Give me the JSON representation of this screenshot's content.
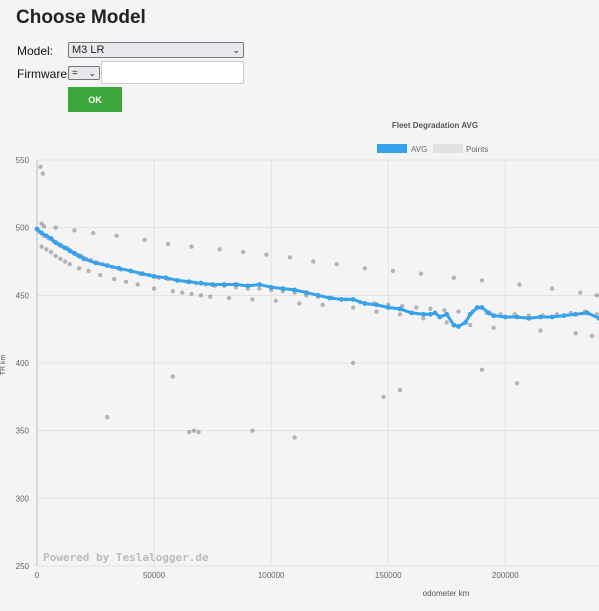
{
  "page": {
    "title": "Choose Model"
  },
  "form": {
    "model_label": "Model:",
    "model_value": "M3 LR",
    "firmware_label": "Firmware:",
    "firmware_operator": "=",
    "firmware_value": "",
    "ok_label": "OK"
  },
  "chart_data": {
    "type": "scatter",
    "title": "Fleet Degradation AVG",
    "xlabel": "odometer km",
    "ylabel": "TR km",
    "xlim": [
      0,
      240000
    ],
    "ylim": [
      250,
      550
    ],
    "x_ticks": [
      0,
      50000,
      100000,
      150000,
      200000
    ],
    "y_ticks": [
      250,
      300,
      350,
      400,
      450,
      500,
      550
    ],
    "grid": true,
    "legend_position": "top",
    "watermark": "Powered by Teslalogger.de",
    "series": [
      {
        "name": "AVG",
        "type": "line",
        "color": "#36a2eb",
        "x": [
          0,
          2000,
          4000,
          6000,
          8000,
          10000,
          12000,
          14000,
          16000,
          18000,
          20000,
          25000,
          30000,
          35000,
          40000,
          45000,
          50000,
          55000,
          60000,
          65000,
          70000,
          75000,
          80000,
          85000,
          90000,
          95000,
          100000,
          105000,
          110000,
          115000,
          120000,
          125000,
          130000,
          135000,
          140000,
          145000,
          150000,
          155000,
          160000,
          165000,
          168000,
          170000,
          172000,
          175000,
          178000,
          180000,
          183000,
          185000,
          188000,
          190000,
          193000,
          195000,
          200000,
          205000,
          210000,
          215000,
          220000,
          225000,
          230000,
          235000,
          240000
        ],
        "y": [
          499,
          496,
          494,
          492,
          489,
          487,
          485,
          483,
          481,
          479,
          477,
          474,
          472,
          470,
          468,
          466,
          464,
          463,
          461,
          460,
          459,
          458,
          458,
          458,
          457,
          458,
          456,
          455,
          454,
          452,
          450,
          448,
          447,
          447,
          444,
          443,
          441,
          440,
          437,
          436,
          436,
          437,
          434,
          436,
          428,
          427,
          430,
          436,
          441,
          441,
          437,
          435,
          434,
          434,
          433,
          434,
          434,
          435,
          436,
          437,
          433
        ]
      },
      {
        "name": "Points",
        "type": "scatter",
        "color": "#999999",
        "x": [
          1000,
          3000,
          5000,
          7000,
          9000,
          11000,
          13000,
          15000,
          17000,
          19000,
          21000,
          23000,
          26000,
          28000,
          32000,
          36000,
          40000,
          44000,
          48000,
          52000,
          56000,
          60000,
          64000,
          68000,
          72000,
          76000,
          80000,
          85000,
          90000,
          95000,
          100000,
          105000,
          110000,
          115000,
          120000,
          126000,
          132000,
          138000,
          144000,
          150000,
          156000,
          162000,
          168000,
          174000,
          180000,
          186000,
          192000,
          198000,
          204000,
          210000,
          216000,
          222000,
          228000,
          234000,
          239000,
          2000,
          4000,
          6000,
          8000,
          10000,
          12000,
          14000,
          18000,
          22000,
          27000,
          33000,
          38000,
          43000,
          50000,
          58000,
          62000,
          66000,
          70000,
          74000,
          82000,
          92000,
          102000,
          112000,
          122000,
          135000,
          145000,
          155000,
          165000,
          175000,
          185000,
          195000,
          215000,
          230000,
          237000,
          2000,
          3000,
          8000,
          16000,
          24000,
          34000,
          46000,
          56000,
          66000,
          78000,
          88000,
          98000,
          108000,
          118000,
          128000,
          140000,
          152000,
          164000,
          178000,
          190000,
          206000,
          220000,
          232000,
          239000,
          1500,
          2500,
          65000,
          67000,
          69000,
          92000,
          110000,
          135000,
          148000,
          155000,
          190000,
          205000,
          30000,
          58000
        ],
        "y": [
          497,
          494,
          492,
          490,
          488,
          486,
          485,
          482,
          480,
          479,
          477,
          476,
          474,
          473,
          471,
          469,
          468,
          466,
          465,
          463,
          462,
          461,
          460,
          459,
          458,
          457,
          457,
          456,
          455,
          455,
          454,
          453,
          452,
          450,
          449,
          448,
          447,
          445,
          444,
          443,
          442,
          441,
          440,
          439,
          438,
          438,
          437,
          436,
          436,
          435,
          435,
          436,
          437,
          438,
          436,
          486,
          484,
          482,
          479,
          477,
          475,
          473,
          470,
          468,
          465,
          462,
          460,
          458,
          455,
          453,
          452,
          451,
          450,
          449,
          448,
          447,
          446,
          444,
          443,
          441,
          438,
          436,
          433,
          430,
          428,
          426,
          424,
          422,
          420,
          503,
          501,
          500,
          498,
          496,
          494,
          491,
          488,
          486,
          484,
          482,
          480,
          478,
          475,
          473,
          470,
          468,
          466,
          463,
          461,
          458,
          455,
          452,
          450,
          545,
          540,
          349,
          350,
          349,
          350,
          345,
          400,
          375,
          380,
          395,
          385,
          360,
          390
        ]
      }
    ]
  }
}
